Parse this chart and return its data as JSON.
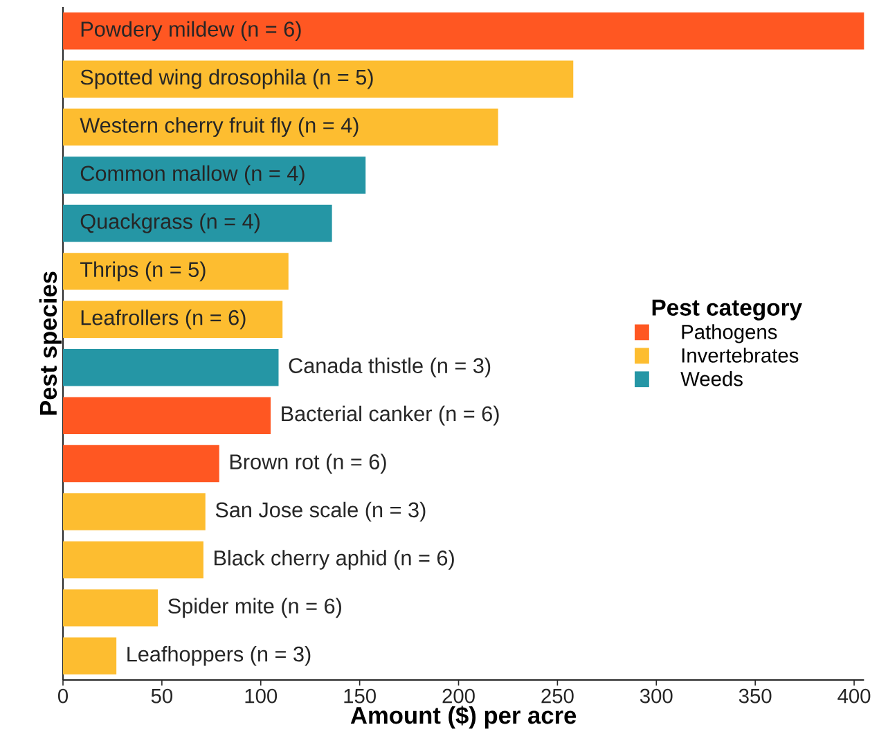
{
  "chart_data": {
    "type": "bar",
    "orientation": "horizontal",
    "xlabel": "Amount ($) per acre",
    "ylabel": "Pest species",
    "legend_title": "Pest category",
    "categories": [
      "Powdery mildew (n = 6)",
      "Spotted wing drosophila (n = 5)",
      "Western cherry fruit fly (n = 4)",
      "Common mallow (n = 4)",
      "Quackgrass (n = 4)",
      "Thrips (n = 5)",
      "Leafrollers (n = 6)",
      "Canada thistle (n = 3)",
      "Bacterial canker (n = 6)",
      "Brown rot (n = 6)",
      "San Jose scale (n = 3)",
      "Black cherry aphid (n = 6)",
      "Spider mite (n = 6)",
      "Leafhoppers (n = 3)"
    ],
    "series": [
      {
        "name": "Pathogens",
        "color": "#ff5722",
        "values": [
          405,
          null,
          null,
          null,
          null,
          null,
          null,
          null,
          105,
          79,
          null,
          null,
          null,
          null
        ]
      },
      {
        "name": "Invertebrates",
        "color": "#fdbd30",
        "values": [
          null,
          258,
          220,
          null,
          null,
          114,
          111,
          null,
          null,
          null,
          72,
          71,
          48,
          27
        ]
      },
      {
        "name": "Weeds",
        "color": "#2596a5",
        "values": [
          null,
          null,
          null,
          153,
          136,
          null,
          null,
          109,
          null,
          null,
          null,
          null,
          null,
          null
        ]
      }
    ],
    "xlim": [
      0,
      405
    ],
    "xticks": [
      0,
      50,
      100,
      150,
      200,
      250,
      300,
      350,
      400
    ],
    "grid": false,
    "legend": "right"
  }
}
